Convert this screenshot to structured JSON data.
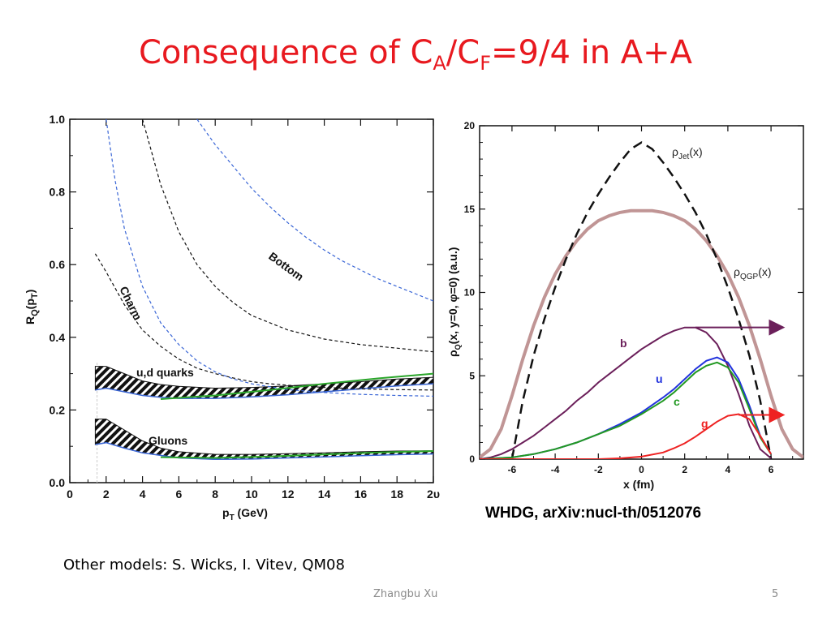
{
  "slide": {
    "title": {
      "main": "Consequence of C",
      "sub1": "A",
      "mid": "/C",
      "sub2": "F",
      "tail": "=9/4 in A+A"
    },
    "citation": "WHDG, arXiv:nucl-th/0512076",
    "other_models": "Other models: S. Wicks, I. Vitev, QM08",
    "footer": "Zhangbu Xu",
    "page_number": "5"
  },
  "chart_data": [
    {
      "type": "line",
      "xlabel": "p_T (GeV)",
      "ylabel": "R_Q(p_T)",
      "xlim": [
        0,
        20
      ],
      "ylim": [
        0,
        1.0
      ],
      "xticks": [
        0,
        2,
        4,
        6,
        8,
        10,
        12,
        14,
        16,
        18,
        20
      ],
      "xtick_labels": [
        "0",
        "2",
        "4",
        "6",
        "8",
        "10",
        "12",
        "14",
        "16",
        "18",
        "2υ"
      ],
      "yticks": [
        0.0,
        0.2,
        0.4,
        0.6,
        0.8,
        1.0
      ],
      "ytick_labels": [
        "0.0",
        "0.2",
        "0.4",
        "0.6",
        "0.8",
        "1.0"
      ],
      "colors": {
        "black": "#111111",
        "blue": "#3a66d6",
        "green": "#2aa52a",
        "band": "#111111"
      },
      "annotations": [
        "Bottom",
        "Charm",
        "u,d quarks",
        "Gluons"
      ],
      "series": [
        {
          "style": "dashed-black",
          "x": [
            1.4,
            2,
            3,
            4,
            5,
            6,
            7,
            8,
            9,
            10,
            11,
            12,
            14,
            16,
            18,
            20
          ],
          "y": [
            0.63,
            0.58,
            0.49,
            0.42,
            0.375,
            0.34,
            0.315,
            0.3,
            0.288,
            0.278,
            0.272,
            0.268,
            0.262,
            0.258,
            0.256,
            0.255
          ]
        },
        {
          "style": "dashed-blue",
          "x": [
            2.0,
            2.5,
            3,
            4,
            5,
            6,
            7,
            8,
            9,
            10,
            12,
            14,
            16,
            18,
            20
          ],
          "y": [
            1.0,
            0.83,
            0.7,
            0.54,
            0.44,
            0.38,
            0.335,
            0.305,
            0.285,
            0.272,
            0.256,
            0.248,
            0.243,
            0.24,
            0.238
          ]
        },
        {
          "style": "dashed-black",
          "x": [
            4.0,
            5,
            6,
            7,
            8,
            9,
            10,
            12,
            14,
            16,
            18,
            20
          ],
          "y": [
            1.0,
            0.82,
            0.69,
            0.6,
            0.54,
            0.495,
            0.46,
            0.42,
            0.395,
            0.38,
            0.37,
            0.36
          ]
        },
        {
          "style": "dashed-blue",
          "x": [
            7.0,
            8,
            9,
            10,
            11,
            12,
            13,
            14,
            15,
            16,
            17,
            18,
            19,
            20
          ],
          "y": [
            1.0,
            0.93,
            0.87,
            0.81,
            0.76,
            0.715,
            0.675,
            0.64,
            0.61,
            0.585,
            0.56,
            0.54,
            0.52,
            0.5
          ]
        },
        {
          "style": "green",
          "x": [
            5,
            8,
            11,
            14,
            17,
            20
          ],
          "y": [
            0.23,
            0.24,
            0.255,
            0.272,
            0.287,
            0.3
          ]
        },
        {
          "style": "green",
          "x": [
            5,
            8,
            11,
            14,
            17,
            20
          ],
          "y": [
            0.07,
            0.068,
            0.072,
            0.078,
            0.083,
            0.087
          ]
        }
      ],
      "bands": [
        {
          "x": [
            1.4,
            2,
            3,
            4,
            5,
            6,
            8,
            10,
            12,
            14,
            16,
            18,
            20
          ],
          "upper": [
            0.32,
            0.32,
            0.3,
            0.28,
            0.27,
            0.265,
            0.26,
            0.262,
            0.266,
            0.272,
            0.278,
            0.285,
            0.29
          ],
          "lower": [
            0.255,
            0.26,
            0.25,
            0.24,
            0.235,
            0.232,
            0.232,
            0.236,
            0.242,
            0.25,
            0.258,
            0.266,
            0.272
          ]
        },
        {
          "x": [
            1.4,
            2,
            3,
            4,
            5,
            6,
            8,
            10,
            12,
            14,
            16,
            18,
            20
          ],
          "upper": [
            0.175,
            0.175,
            0.145,
            0.115,
            0.095,
            0.085,
            0.078,
            0.078,
            0.08,
            0.082,
            0.085,
            0.087,
            0.088
          ],
          "lower": [
            0.105,
            0.11,
            0.095,
            0.082,
            0.075,
            0.068,
            0.064,
            0.065,
            0.068,
            0.071,
            0.074,
            0.077,
            0.079
          ]
        }
      ]
    },
    {
      "type": "line",
      "xlabel": "x (fm)",
      "ylabel": "ρ_Q(x, y=0, φ=0)  (a.u.)",
      "xlim": [
        -7.5,
        7.5
      ],
      "ylim": [
        0,
        20
      ],
      "xticks": [
        -6,
        -4,
        -2,
        0,
        2,
        4,
        6
      ],
      "xtick_labels": [
        "-6",
        "-4",
        "-2",
        "0",
        "2",
        "4",
        "6"
      ],
      "yticks": [
        0,
        5,
        10,
        15,
        20
      ],
      "ytick_labels": [
        "0",
        "5",
        "10",
        "15",
        "20"
      ],
      "annotations": {
        "jet": "ρ_Jet(x)",
        "qgp": "ρ_QGP(x)",
        "b": "b",
        "u": "u",
        "c": "c",
        "g": "g"
      },
      "series": [
        {
          "name": "ρ_Jet(x)",
          "style": "dashed-black",
          "color": "#111111",
          "x": [
            -6.0,
            -5.5,
            -5,
            -4.5,
            -4,
            -3.5,
            -3,
            -2.5,
            -2,
            -1.5,
            -1,
            -0.5,
            0,
            0.5,
            1,
            1.5,
            2,
            2.5,
            3,
            3.5,
            4,
            4.5,
            5,
            5.5,
            6.0
          ],
          "y": [
            0,
            3.5,
            6.2,
            8.4,
            10.3,
            12.0,
            13.5,
            14.8,
            15.9,
            16.9,
            17.8,
            18.6,
            19.0,
            18.6,
            17.8,
            16.9,
            15.9,
            14.8,
            13.5,
            12.0,
            10.3,
            8.4,
            6.2,
            3.5,
            0
          ]
        },
        {
          "name": "ρ_QGP(x)",
          "style": "solid",
          "color": "#c09595",
          "x": [
            -7.5,
            -7,
            -6.5,
            -6,
            -5.5,
            -5,
            -4.5,
            -4,
            -3.5,
            -3,
            -2.5,
            -2,
            -1.5,
            -1,
            -0.5,
            0,
            0.5,
            1,
            1.5,
            2,
            2.5,
            3,
            3.5,
            4,
            4.5,
            5,
            5.5,
            6,
            6.5,
            7,
            7.5
          ],
          "y": [
            0.1,
            0.6,
            1.8,
            3.8,
            6.0,
            8.0,
            9.7,
            11.1,
            12.2,
            13.1,
            13.8,
            14.3,
            14.6,
            14.8,
            14.9,
            14.9,
            14.9,
            14.8,
            14.6,
            14.3,
            13.8,
            13.1,
            12.2,
            11.1,
            9.7,
            8.0,
            6.0,
            3.8,
            1.8,
            0.6,
            0.1
          ]
        },
        {
          "name": "b",
          "style": "solid",
          "color": "#6b1f5a",
          "x": [
            -7.5,
            -7,
            -6.5,
            -6,
            -5.5,
            -5,
            -4.5,
            -4,
            -3.5,
            -3,
            -2.5,
            -2,
            -1.5,
            -1,
            -0.5,
            0,
            0.5,
            1,
            1.5,
            2,
            2.5,
            3,
            3.5,
            4,
            4.5,
            5,
            5.5,
            6
          ],
          "y": [
            0,
            0.1,
            0.3,
            0.6,
            1.0,
            1.4,
            1.9,
            2.4,
            2.9,
            3.5,
            4.0,
            4.6,
            5.1,
            5.6,
            6.1,
            6.6,
            7.0,
            7.4,
            7.7,
            7.9,
            7.9,
            7.6,
            6.9,
            5.6,
            3.9,
            2.0,
            0.6,
            0.05
          ]
        },
        {
          "name": "u",
          "style": "solid",
          "color": "#2233dd",
          "x": [
            -7.5,
            -6,
            -5,
            -4,
            -3,
            -2,
            -1,
            0,
            1,
            1.5,
            2,
            2.5,
            3,
            3.5,
            4,
            4.5,
            5,
            5.5,
            6
          ],
          "y": [
            0,
            0.1,
            0.3,
            0.6,
            1.0,
            1.5,
            2.1,
            2.8,
            3.7,
            4.2,
            4.8,
            5.4,
            5.9,
            6.1,
            5.8,
            4.8,
            3.2,
            1.4,
            0.3
          ]
        },
        {
          "name": "c",
          "style": "solid",
          "color": "#229922",
          "x": [
            -7.5,
            -6,
            -5,
            -4,
            -3,
            -2,
            -1,
            0,
            1,
            1.5,
            2,
            2.5,
            3,
            3.5,
            4,
            4.5,
            5,
            5.5,
            6
          ],
          "y": [
            0,
            0.1,
            0.3,
            0.6,
            1.0,
            1.5,
            2.0,
            2.7,
            3.5,
            4.0,
            4.6,
            5.2,
            5.6,
            5.8,
            5.5,
            4.6,
            3.0,
            1.3,
            0.3
          ]
        },
        {
          "name": "g",
          "style": "solid",
          "color": "#ee2222",
          "x": [
            -7.5,
            -2,
            -1,
            0,
            1,
            1.5,
            2,
            2.5,
            3,
            3.5,
            4,
            4.5,
            5,
            5.5,
            6
          ],
          "y": [
            0,
            0,
            0.05,
            0.15,
            0.4,
            0.65,
            0.95,
            1.35,
            1.8,
            2.25,
            2.6,
            2.7,
            2.4,
            1.4,
            0.3
          ]
        }
      ],
      "arrows": [
        {
          "color": "#6b1f5a",
          "from": [
            2.5,
            7.9
          ],
          "to": [
            6.5,
            7.9
          ]
        },
        {
          "color": "#ee2222",
          "from": [
            4.5,
            2.65
          ],
          "to": [
            6.5,
            2.65
          ]
        }
      ]
    }
  ]
}
